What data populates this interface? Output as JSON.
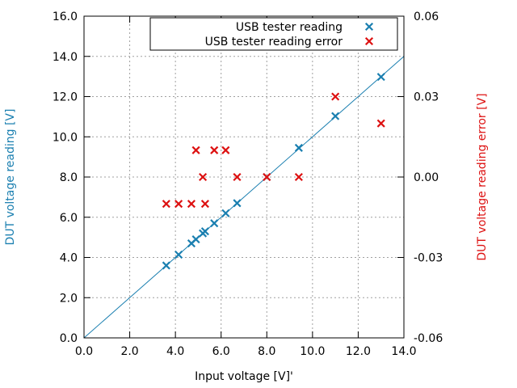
{
  "chart_data": {
    "type": "scatter",
    "xlabel": "Input voltage [V]'",
    "ylabel": "DUT voltage reading [V]",
    "y2label": "DUT voltage reading error [V]",
    "xlim": [
      0,
      14
    ],
    "ylim": [
      0,
      16
    ],
    "y2lim": [
      -0.06,
      0.06
    ],
    "grid": true,
    "legend_position": "top-right",
    "x_ticks": [
      {
        "value": 0,
        "label": "0.0"
      },
      {
        "value": 2,
        "label": "2.0"
      },
      {
        "value": 4,
        "label": "4.0"
      },
      {
        "value": 6,
        "label": "6.0"
      },
      {
        "value": 8,
        "label": "8.0"
      },
      {
        "value": 10,
        "label": "10.0"
      },
      {
        "value": 12,
        "label": "12.0"
      },
      {
        "value": 14,
        "label": "14.0"
      }
    ],
    "y_ticks": [
      {
        "value": 0,
        "label": "0.0"
      },
      {
        "value": 2,
        "label": "2.0"
      },
      {
        "value": 4,
        "label": "4.0"
      },
      {
        "value": 6,
        "label": "6.0"
      },
      {
        "value": 8,
        "label": "8.0"
      },
      {
        "value": 10,
        "label": "10.0"
      },
      {
        "value": 12,
        "label": "12.0"
      },
      {
        "value": 14,
        "label": "14.0"
      },
      {
        "value": 16,
        "label": "16.0"
      }
    ],
    "y2_ticks": [
      {
        "value": -0.06,
        "label": "-0.06"
      },
      {
        "value": -0.03,
        "label": "-0.03"
      },
      {
        "value": 0,
        "label": "0.00"
      },
      {
        "value": 0.03,
        "label": "0.03"
      },
      {
        "value": 0.06,
        "label": "0.06"
      }
    ],
    "reference_line": {
      "name": "y = x",
      "x": [
        0,
        14
      ],
      "y": [
        0,
        14
      ],
      "color": "#1a7fb0"
    },
    "series": [
      {
        "name": "USB tester reading",
        "axis": "y",
        "marker": "x",
        "color": "#1a7fb0",
        "x": [
          3.6,
          4.14,
          4.7,
          4.9,
          5.2,
          5.3,
          5.7,
          6.2,
          6.7,
          8.0,
          9.4,
          11.0,
          13.0
        ],
        "y": [
          3.6,
          4.14,
          4.7,
          4.9,
          5.2,
          5.3,
          5.7,
          6.2,
          6.7,
          8.0,
          9.45,
          11.03,
          12.98
        ]
      },
      {
        "name": "USB tester reading error",
        "axis": "y2",
        "marker": "x",
        "color": "#dd1111",
        "x": [
          3.6,
          4.14,
          4.7,
          4.9,
          5.2,
          5.3,
          5.7,
          6.2,
          6.7,
          8.0,
          9.4,
          11.0,
          13.0
        ],
        "y": [
          -0.01,
          -0.01,
          -0.01,
          0.01,
          0.0,
          -0.01,
          0.01,
          0.01,
          0.0,
          0.0,
          0.0,
          0.03,
          0.02
        ]
      }
    ]
  }
}
